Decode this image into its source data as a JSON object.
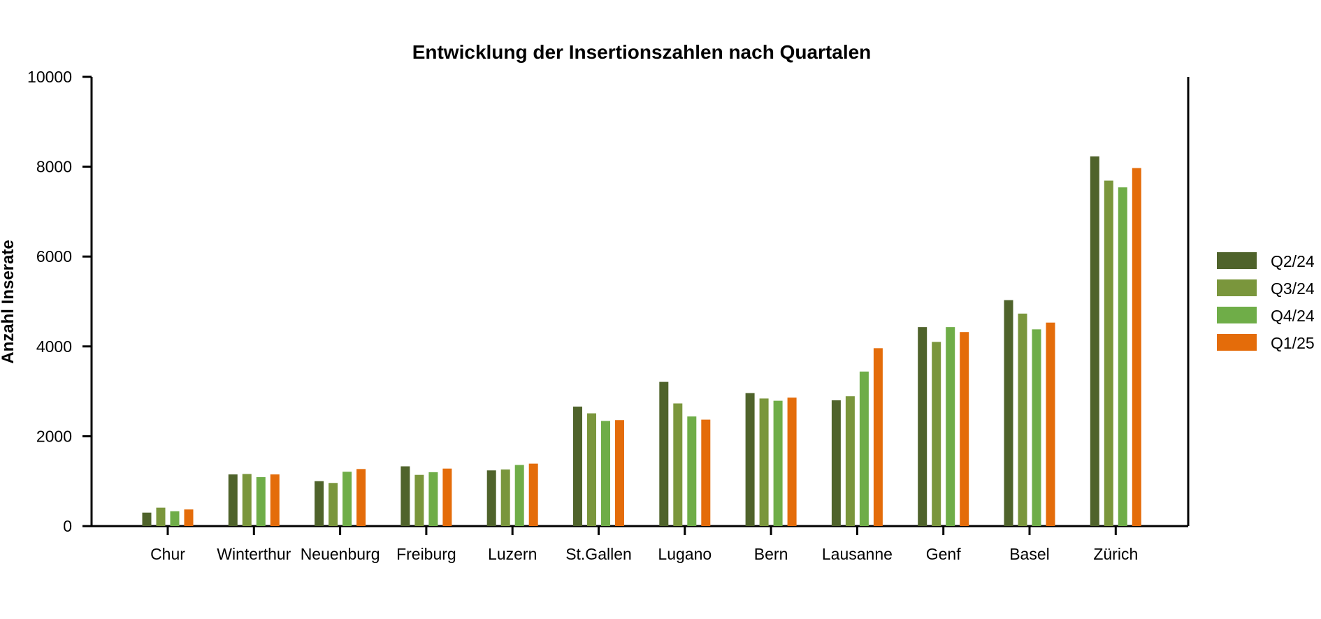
{
  "chart_data": {
    "type": "bar",
    "title": "Entwicklung der Insertionszahlen nach Quartalen",
    "xlabel": "",
    "ylabel": "Anzahl Inserate",
    "ylim": [
      0,
      10000
    ],
    "yticks": [
      0,
      2000,
      4000,
      6000,
      8000,
      10000
    ],
    "grid": false,
    "legend_position": "right",
    "categories": [
      "Chur",
      "Winterthur",
      "Neuenburg",
      "Freiburg",
      "Luzern",
      "St.Gallen",
      "Lugano",
      "Bern",
      "Lausanne",
      "Genf",
      "Basel",
      "Zürich"
    ],
    "series": [
      {
        "name": "Q2/24",
        "color": "#4f632b",
        "values": [
          300,
          1150,
          1000,
          1330,
          1240,
          2660,
          3210,
          2960,
          2800,
          4430,
          5030,
          8230
        ]
      },
      {
        "name": "Q3/24",
        "color": "#7a963c",
        "values": [
          410,
          1160,
          960,
          1140,
          1260,
          2510,
          2730,
          2840,
          2890,
          4100,
          4730,
          7690
        ]
      },
      {
        "name": "Q4/24",
        "color": "#6fad48",
        "values": [
          330,
          1090,
          1210,
          1200,
          1360,
          2340,
          2440,
          2790,
          3440,
          4430,
          4380,
          7540
        ]
      },
      {
        "name": "Q1/25",
        "color": "#e46c0a",
        "values": [
          370,
          1150,
          1270,
          1280,
          1390,
          2360,
          2370,
          2860,
          3960,
          4320,
          4530,
          7970
        ]
      }
    ]
  }
}
